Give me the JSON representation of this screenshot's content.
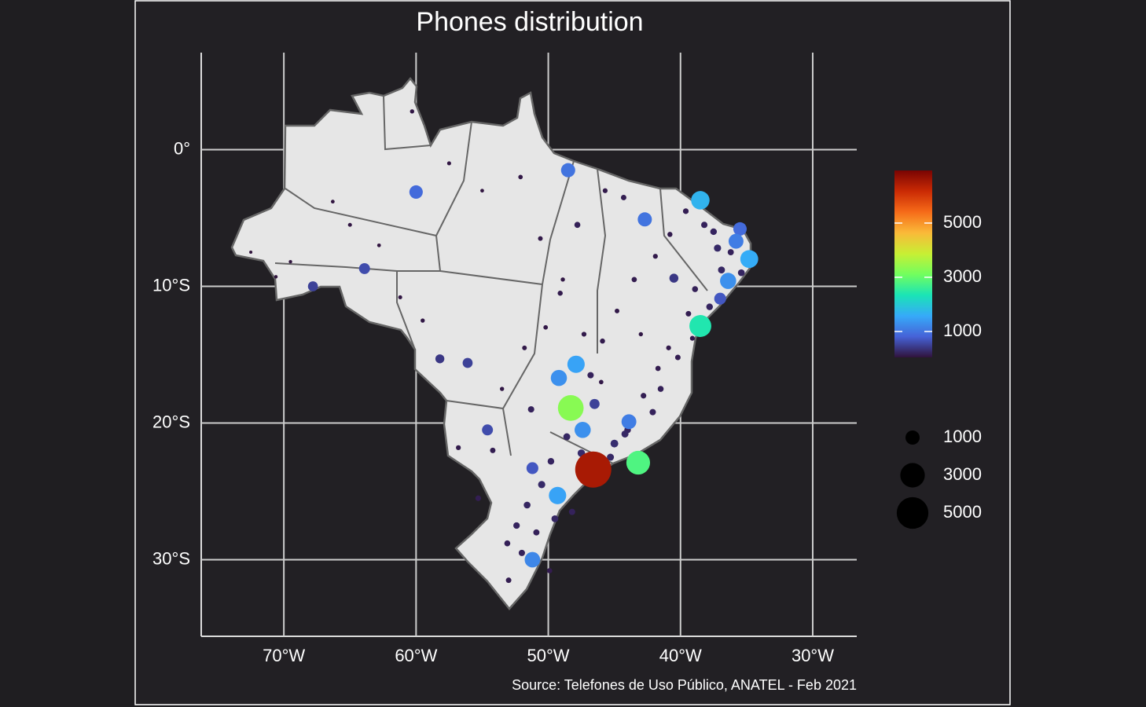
{
  "chart_data": {
    "type": "bubble",
    "title": "Phones distribution",
    "caption": "Source: Telefones de Uso Público, ANATEL - Feb 2021",
    "xlim": [
      -76.25,
      -26.67
    ],
    "ylim": [
      -35.6,
      7.1
    ],
    "xticks": [
      {
        "value": -70,
        "label": "70°W"
      },
      {
        "value": -60,
        "label": "60°W"
      },
      {
        "value": -50,
        "label": "50°W"
      },
      {
        "value": -40,
        "label": "40°W"
      },
      {
        "value": -30,
        "label": "30°W"
      }
    ],
    "yticks": [
      {
        "value": 0,
        "label": "0°"
      },
      {
        "value": -10,
        "label": "10°S"
      },
      {
        "value": -20,
        "label": "20°S"
      },
      {
        "value": -30,
        "label": "30°S"
      }
    ],
    "grid": true,
    "colormap": [
      "#30123b",
      "#4662d7",
      "#36aaf9",
      "#1ae4b6",
      "#72fe5e",
      "#c8ef34",
      "#faba39",
      "#f66b19",
      "#ca2a04",
      "#7a0403"
    ],
    "color_lim": [
      43,
      6940
    ],
    "color_ticks": [
      1000,
      3000,
      5000
    ],
    "size_legend": [
      1000,
      3000,
      5000
    ],
    "x": [
      -46.6,
      -43.2,
      -43.9,
      -48.3,
      -47.4,
      -47.9,
      -49.2,
      -49.3,
      -51.2,
      -51.2,
      -38.5,
      -38.5,
      -34.8,
      -36.4,
      -35.8,
      -35.5,
      -42.7,
      -48.5,
      -60.0,
      -63.9,
      -67.8,
      -54.6,
      -56.1,
      -58.2,
      -46.5,
      -37.0,
      -40.5,
      -45.0,
      -44.2,
      -42.1,
      -41.5,
      -40.2,
      -39.1,
      -37.8,
      -37.2,
      -36.9,
      -38.2,
      -39.6,
      -40.8,
      -41.9,
      -43.5,
      -44.8,
      -45.9,
      -46.8,
      -47.5,
      -48.6,
      -49.8,
      -50.5,
      -51.6,
      -52.4,
      -53.1,
      -52.0,
      -50.9,
      -49.5,
      -48.2,
      -47.1,
      -46.2,
      -45.3,
      -44.0,
      -42.8,
      -41.7,
      -40.9,
      -39.4,
      -38.9,
      -37.5,
      -36.2,
      -35.4,
      -44.3,
      -45.7,
      -47.8,
      -49.1,
      -50.2,
      -51.8,
      -53.5,
      -54.2,
      -55.3,
      -56.8,
      -59.5,
      -61.2,
      -62.8,
      -65.0,
      -69.5,
      -70.6,
      -72.5,
      -66.3,
      -60.3,
      -57.5,
      -55.0,
      -52.1,
      -50.6,
      -48.9,
      -47.3,
      -51.3,
      -53.0,
      -49.9,
      -46.0,
      -43.0
    ],
    "y": [
      -23.4,
      -22.9,
      -19.9,
      -18.9,
      -20.5,
      -15.7,
      -16.7,
      -25.3,
      -30.0,
      -23.3,
      -12.9,
      -3.7,
      -8.0,
      -9.6,
      -6.7,
      -5.8,
      -5.1,
      -1.5,
      -3.1,
      -8.7,
      -10.0,
      -20.5,
      -15.6,
      -15.3,
      -18.6,
      -10.9,
      -9.4,
      -21.5,
      -20.8,
      -19.2,
      -17.5,
      -15.2,
      -13.8,
      -11.5,
      -7.2,
      -8.8,
      -5.5,
      -4.5,
      -6.2,
      -7.8,
      -9.5,
      -11.8,
      -14.0,
      -16.5,
      -22.2,
      -21.0,
      -22.8,
      -24.5,
      -26.0,
      -27.5,
      -28.8,
      -29.5,
      -28.0,
      -27.0,
      -26.5,
      -24.0,
      -23.0,
      -22.5,
      -20.5,
      -18.0,
      -16.0,
      -14.5,
      -12.0,
      -10.2,
      -6.0,
      -7.5,
      -9.0,
      -3.5,
      -3.0,
      -5.5,
      -10.5,
      -13.0,
      -14.5,
      -17.5,
      -22.0,
      -25.5,
      -21.8,
      -12.5,
      -10.8,
      -7.0,
      -5.5,
      -8.2,
      -9.3,
      -7.5,
      -3.8,
      2.8,
      -1.0,
      -3.0,
      -2.0,
      -6.5,
      -9.5,
      -13.5,
      -19.0,
      -31.5,
      -30.8,
      -17.0,
      -13.5
    ],
    "size": [
      6500,
      2800,
      1100,
      3300,
      1300,
      1500,
      1300,
      1500,
      1200,
      700,
      2400,
      1700,
      1600,
      1300,
      1100,
      900,
      1000,
      1000,
      900,
      600,
      500,
      600,
      500,
      400,
      500,
      700,
      400,
      300,
      250,
      200,
      180,
      150,
      120,
      220,
      260,
      240,
      200,
      160,
      130,
      120,
      140,
      110,
      130,
      200,
      280,
      240,
      220,
      260,
      230,
      210,
      180,
      200,
      190,
      240,
      200,
      260,
      300,
      250,
      220,
      160,
      140,
      120,
      150,
      180,
      220,
      190,
      230,
      150,
      120,
      180,
      130,
      100,
      110,
      90,
      150,
      160,
      120,
      90,
      80,
      70,
      80,
      60,
      60,
      50,
      70,
      90,
      80,
      70,
      100,
      110,
      90,
      120,
      200,
      150,
      140,
      100,
      90
    ]
  }
}
